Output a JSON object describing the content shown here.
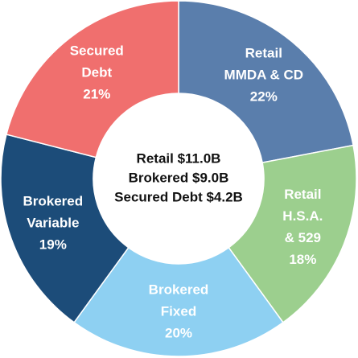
{
  "chart_data": {
    "type": "donut",
    "categories": [
      [
        "Retail",
        "MMDA & CD"
      ],
      [
        "Retail",
        "H.S.A.",
        "& 529"
      ],
      [
        "Brokered",
        "Fixed"
      ],
      [
        "Brokered",
        "Variable"
      ],
      [
        "Secured",
        "Debt"
      ]
    ],
    "values": [
      22,
      18,
      20,
      19,
      21
    ],
    "value_labels": [
      "22%",
      "18%",
      "20%",
      "19%",
      "21%"
    ],
    "colors": [
      "#5a7eac",
      "#9ccf8e",
      "#8ed0f2",
      "#1c4c79",
      "#f06f6e"
    ],
    "center_text": [
      "Retail $11.0B",
      "Brokered $9.0B",
      "Secured Debt $4.2B"
    ]
  }
}
